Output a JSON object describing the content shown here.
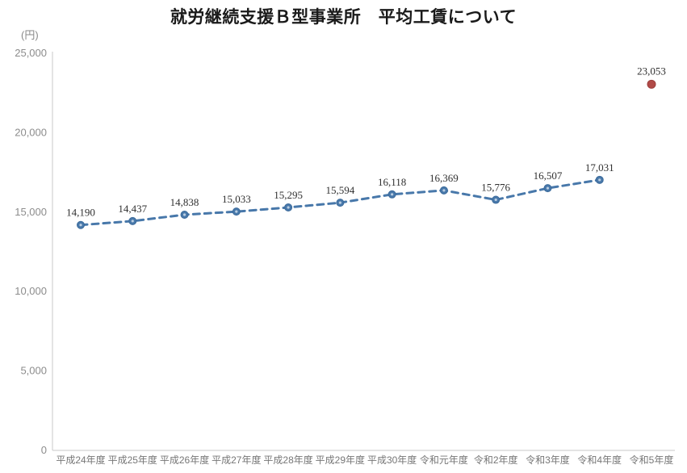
{
  "chart_data": {
    "type": "line",
    "title": "就労継続支援Ｂ型事業所　平均工賃について",
    "unit_label": "(円)",
    "categories": [
      "平成24年度",
      "平成25年度",
      "平成26年度",
      "平成27年度",
      "平成28年度",
      "平成29年度",
      "平成30年度",
      "令和元年度",
      "令和2年度",
      "令和3年度",
      "令和4年度",
      "令和5年度"
    ],
    "values": [
      14190,
      14437,
      14838,
      15033,
      15295,
      15594,
      16118,
      16369,
      15776,
      16507,
      17031,
      23053
    ],
    "data_labels": [
      "14,190",
      "14,437",
      "14,838",
      "15,033",
      "15,295",
      "15,594",
      "16,118",
      "16,369",
      "15,776",
      "16,507",
      "17,031",
      "23,053"
    ],
    "line_style": "dashed",
    "connected_point_count": 11,
    "last_point_detached": true,
    "marker": "circle",
    "ylim": [
      0,
      25000
    ],
    "ytick_values": [
      0,
      5000,
      10000,
      15000,
      20000,
      25000
    ],
    "ytick_labels": [
      "0",
      "5,000",
      "10,000",
      "15,000",
      "20,000",
      "25,000"
    ],
    "xlabel": "",
    "ylabel": "(円)",
    "grid": false,
    "legend": "none",
    "colors": {
      "line": "#4878aa",
      "marker_stroke": "#3c6b9b",
      "marker_inner": "#b9cde1",
      "highlight_point": "#b14a47",
      "highlight_stroke": "#9c3f3d",
      "axis_line": "#c9c9c9",
      "ytick_text": "#8c8c8c",
      "xlabel_text": "#767676",
      "data_label_text": "#303030",
      "title_text": "#1a1a1a"
    }
  }
}
